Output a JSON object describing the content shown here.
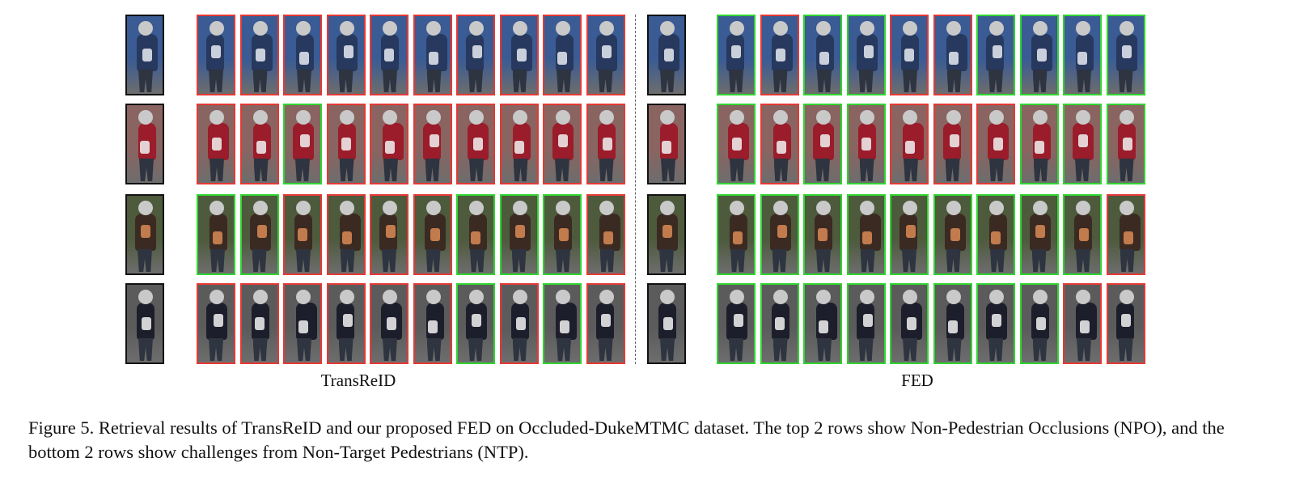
{
  "figure": {
    "panels": [
      {
        "label": "TransReID",
        "rows": [
          [
            "wrong",
            "wrong",
            "wrong",
            "wrong",
            "wrong",
            "wrong",
            "wrong",
            "wrong",
            "wrong",
            "wrong"
          ],
          [
            "wrong",
            "wrong",
            "match",
            "wrong",
            "wrong",
            "wrong",
            "wrong",
            "wrong",
            "wrong",
            "wrong"
          ],
          [
            "match",
            "match",
            "wrong",
            "wrong",
            "wrong",
            "wrong",
            "match",
            "match",
            "match",
            "wrong"
          ],
          [
            "wrong",
            "wrong",
            "wrong",
            "wrong",
            "wrong",
            "wrong",
            "match",
            "wrong",
            "match",
            "wrong"
          ]
        ]
      },
      {
        "label": "FED",
        "rows": [
          [
            "match",
            "wrong",
            "match",
            "match",
            "wrong",
            "wrong",
            "match",
            "match",
            "match",
            "match"
          ],
          [
            "match",
            "wrong",
            "match",
            "match",
            "wrong",
            "wrong",
            "wrong",
            "match",
            "match",
            "match"
          ],
          [
            "match",
            "match",
            "match",
            "match",
            "match",
            "match",
            "match",
            "match",
            "match",
            "wrong"
          ],
          [
            "match",
            "match",
            "match",
            "match",
            "match",
            "match",
            "match",
            "match",
            "wrong",
            "wrong"
          ]
        ]
      }
    ],
    "colors": {
      "match": "#30d530",
      "wrong": "#e53935",
      "query": "#111111"
    },
    "row_tints": [
      {
        "bg": "#3a5b94",
        "body": "#27395e",
        "accent": "#e7eaf2"
      },
      {
        "bg": "#8a6460",
        "body": "#9b1c2a",
        "accent": "#f1f1f1"
      },
      {
        "bg": "#4d5a3c",
        "body": "#3b2a22",
        "accent": "#d98a55"
      },
      {
        "bg": "#5b5b5b",
        "body": "#1d1e2b",
        "accent": "#f2f2f2"
      }
    ]
  },
  "caption": "Figure 5. Retrieval results of TransReID and our proposed FED on Occluded-DukeMTMC dataset. The top 2 rows show Non-Pedestrian Occlusions (NPO), and the bottom 2 rows show challenges from Non-Target Pedestrians (NTP)."
}
